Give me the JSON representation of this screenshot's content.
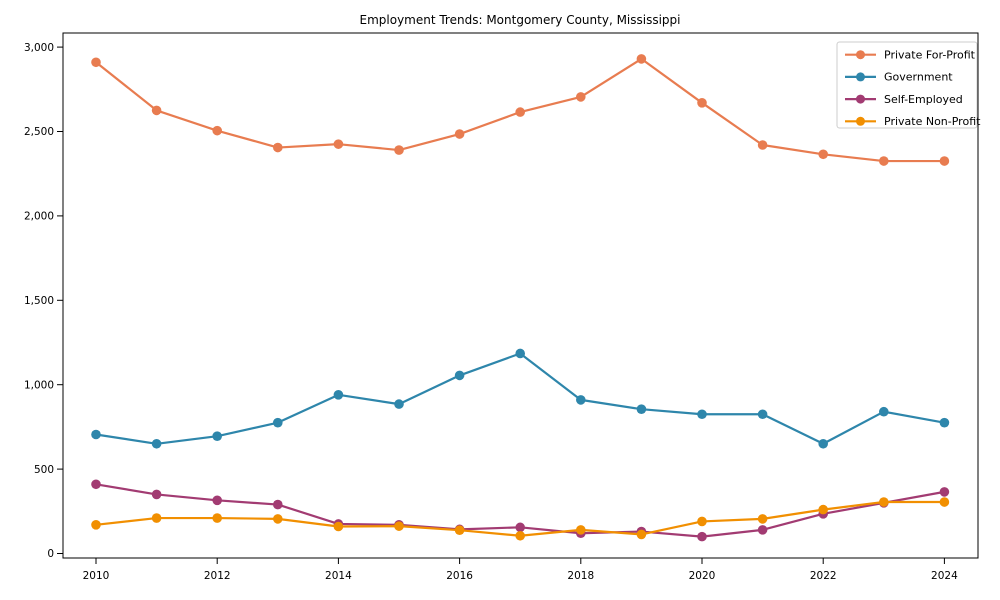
{
  "chart_data": {
    "type": "line",
    "title": "Employment Trends: Montgomery County, Mississippi",
    "xlabel": "",
    "ylabel": "",
    "x": [
      2010,
      2011,
      2012,
      2013,
      2014,
      2015,
      2016,
      2017,
      2018,
      2019,
      2020,
      2021,
      2022,
      2023,
      2024
    ],
    "series": [
      {
        "name": "Private For-Profit",
        "color": "#e87c50",
        "values": [
          2910,
          2625,
          2505,
          2405,
          2425,
          2390,
          2485,
          2615,
          2705,
          2930,
          2670,
          2420,
          2365,
          2325,
          2325
        ]
      },
      {
        "name": "Government",
        "color": "#2e86ab",
        "values": [
          705,
          650,
          695,
          775,
          940,
          885,
          1055,
          1185,
          910,
          855,
          825,
          825,
          650,
          840,
          775
        ]
      },
      {
        "name": "Self-Employed",
        "color": "#a23b72",
        "values": [
          410,
          350,
          315,
          290,
          175,
          170,
          143,
          155,
          120,
          130,
          100,
          140,
          235,
          300,
          365
        ]
      },
      {
        "name": "Private Non-Profit",
        "color": "#f18f01",
        "values": [
          170,
          210,
          210,
          205,
          160,
          162,
          138,
          105,
          140,
          113,
          190,
          205,
          260,
          305,
          305
        ]
      }
    ],
    "xticks": [
      2010,
      2012,
      2014,
      2016,
      2018,
      2020,
      2022,
      2024
    ],
    "yticks": [
      0,
      500,
      1000,
      1500,
      2000,
      2500,
      3000
    ],
    "ytick_labels": [
      "0",
      "500",
      "1,000",
      "1,500",
      "2,000",
      "2,500",
      "3,000"
    ],
    "ylim": [
      0,
      3084
    ],
    "xlim": [
      2009.45,
      2024.7
    ],
    "grid": false,
    "marker": "circle",
    "legend": {
      "position": "upper-right"
    },
    "frame_color": "#000000",
    "legend_border_color": "#cccccc",
    "background_color": "#ffffff"
  }
}
